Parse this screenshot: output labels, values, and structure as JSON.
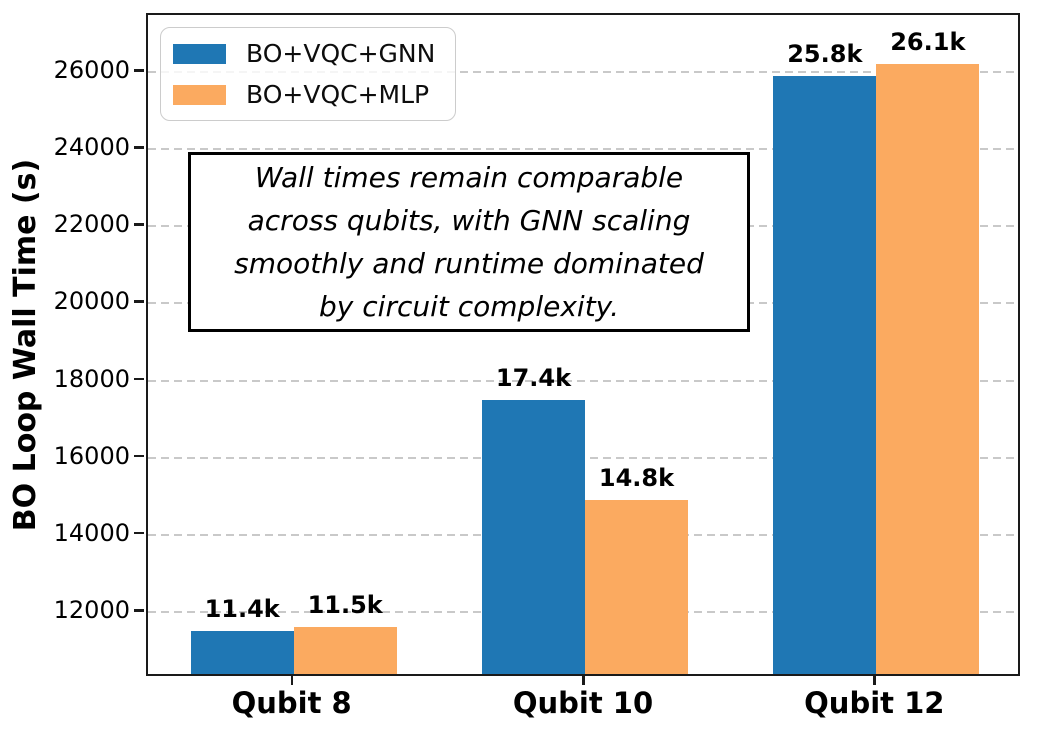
{
  "chart_data": {
    "type": "bar",
    "title": "",
    "categories": [
      "Qubit 8",
      "Qubit 10",
      "Qubit 12"
    ],
    "series": [
      {
        "name": "BO+VQC+GNN",
        "color": "#1f77b4",
        "values": [
          11400,
          17400,
          25800
        ],
        "value_labels": [
          "11.4k",
          "17.4k",
          "25.8k"
        ]
      },
      {
        "name": "BO+VQC+MLP",
        "color": "#fbaa60",
        "values": [
          11500,
          14800,
          26100
        ],
        "value_labels": [
          "11.5k",
          "14.8k",
          "26.1k"
        ]
      }
    ],
    "xlabel": "",
    "ylabel": "BO Loop Wall Time (s)",
    "yticks": [
      12000,
      14000,
      16000,
      18000,
      20000,
      22000,
      24000,
      26000
    ],
    "ylim": [
      10290,
      27480
    ],
    "grid": "horizontal-dashed",
    "legend_position": "upper-left",
    "annotation": "Wall times remain comparable across qubits, with GNN scaling smoothly and runtime dominated by circuit complexity.",
    "annotation_lines": [
      "Wall times remain comparable",
      "across qubits, with GNN scaling",
      "smoothly and runtime dominated",
      "by circuit complexity."
    ],
    "colors": {
      "grid": "#c9c9c9",
      "spine": "#1a1a1a",
      "text": "#000000",
      "legend_border": "#cccccc",
      "background": "#ffffff"
    }
  }
}
